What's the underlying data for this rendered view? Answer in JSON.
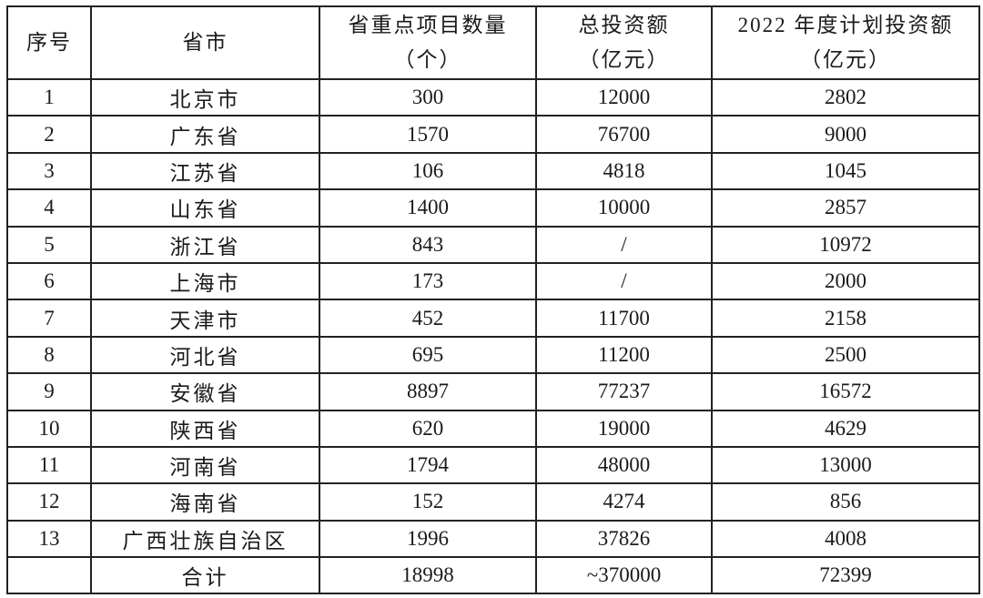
{
  "headers": [
    {
      "line1": "序号",
      "line2": ""
    },
    {
      "line1": "省市",
      "line2": ""
    },
    {
      "line1": "省重点项目数量",
      "line2": "（个）"
    },
    {
      "line1": "总投资额",
      "line2": "（亿元）"
    },
    {
      "line1": "2022 年度计划投资额",
      "line2": "（亿元）"
    }
  ],
  "rows": [
    [
      "1",
      "北京市",
      "300",
      "12000",
      "2802"
    ],
    [
      "2",
      "广东省",
      "1570",
      "76700",
      "9000"
    ],
    [
      "3",
      "江苏省",
      "106",
      "4818",
      "1045"
    ],
    [
      "4",
      "山东省",
      "1400",
      "10000",
      "2857"
    ],
    [
      "5",
      "浙江省",
      "843",
      "/",
      "10972"
    ],
    [
      "6",
      "上海市",
      "173",
      "/",
      "2000"
    ],
    [
      "7",
      "天津市",
      "452",
      "11700",
      "2158"
    ],
    [
      "8",
      "河北省",
      "695",
      "11200",
      "2500"
    ],
    [
      "9",
      "安徽省",
      "8897",
      "77237",
      "16572"
    ],
    [
      "10",
      "陕西省",
      "620",
      "19000",
      "4629"
    ],
    [
      "11",
      "河南省",
      "1794",
      "48000",
      "13000"
    ],
    [
      "12",
      "海南省",
      "152",
      "4274",
      "856"
    ],
    [
      "13",
      "广西壮族自治区",
      "1996",
      "37826",
      "4008"
    ],
    [
      "",
      "合计",
      "18998",
      "~370000",
      "72399"
    ]
  ]
}
